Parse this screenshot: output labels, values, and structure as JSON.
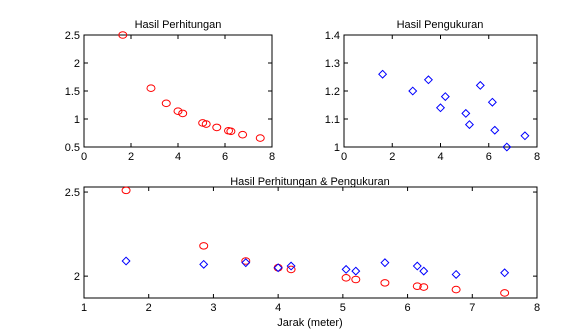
{
  "chart_data": [
    {
      "type": "scatter",
      "title": "Hasil Perhitungan",
      "xlabel": "",
      "ylabel": "",
      "xlim": [
        0,
        8
      ],
      "ylim": [
        0.5,
        2.5
      ],
      "xticks": [
        0,
        2,
        4,
        6,
        8
      ],
      "xtick_labels": [
        "0",
        "2",
        "4",
        "6",
        "8"
      ],
      "yticks": [
        0.5,
        1,
        1.5,
        2,
        2.5
      ],
      "ytick_labels": [
        "0.5",
        "1",
        "1.5",
        "2",
        "2.5"
      ],
      "grid": false,
      "series": [
        {
          "marker": "circle",
          "color": "#ff0000",
          "x": [
            1.65,
            2.85,
            3.5,
            4.0,
            4.2,
            5.05,
            5.2,
            5.65,
            6.15,
            6.25,
            6.75,
            7.5
          ],
          "y": [
            2.5,
            1.55,
            1.28,
            1.14,
            1.1,
            0.93,
            0.91,
            0.85,
            0.79,
            0.78,
            0.72,
            0.66
          ]
        }
      ]
    },
    {
      "type": "scatter",
      "title": "Hasil Pengukuran",
      "xlabel": "",
      "ylabel": "",
      "xlim": [
        0,
        8
      ],
      "ylim": [
        1,
        1.4
      ],
      "xticks": [
        0,
        2,
        4,
        6,
        8
      ],
      "xtick_labels": [
        "0",
        "2",
        "4",
        "6",
        "8"
      ],
      "yticks": [
        1,
        1.1,
        1.2,
        1.3,
        1.4
      ],
      "ytick_labels": [
        "1",
        "1.1",
        "1.2",
        "1.3",
        "1.4"
      ],
      "grid": false,
      "series": [
        {
          "marker": "diamond",
          "color": "#0000ff",
          "x": [
            1.6,
            2.85,
            3.5,
            4.0,
            4.2,
            5.05,
            5.2,
            5.65,
            6.15,
            6.25,
            6.75,
            7.5
          ],
          "y": [
            1.26,
            1.2,
            1.24,
            1.14,
            1.18,
            1.12,
            1.08,
            1.22,
            1.16,
            1.06,
            1.0,
            1.04
          ]
        }
      ]
    },
    {
      "type": "scatter",
      "title": "Hasil Perhitungan & Pengukuran",
      "xlabel": "Jarak (meter)",
      "ylabel": "",
      "xlim": [
        1,
        8
      ],
      "ylim": [
        1.87,
        2.53
      ],
      "xticks": [
        1,
        2,
        3,
        4,
        5,
        6,
        7,
        8
      ],
      "xtick_labels": [
        "1",
        "2",
        "3",
        "4",
        "5",
        "6",
        "7",
        "8"
      ],
      "yticks": [
        2,
        2.5
      ],
      "ytick_labels": [
        "2",
        "2.5"
      ],
      "grid": false,
      "series": [
        {
          "marker": "circle",
          "color": "#ff0000",
          "x": [
            1.65,
            2.85,
            3.5,
            4.0,
            4.2,
            5.05,
            5.2,
            5.65,
            6.15,
            6.25,
            6.75,
            7.5
          ],
          "y": [
            2.51,
            2.18,
            2.09,
            2.05,
            2.04,
            1.99,
            1.98,
            1.96,
            1.94,
            1.935,
            1.92,
            1.9
          ]
        },
        {
          "marker": "diamond",
          "color": "#0000ff",
          "x": [
            1.65,
            2.85,
            3.5,
            4.0,
            4.2,
            5.05,
            5.2,
            5.65,
            6.15,
            6.25,
            6.75,
            7.5
          ],
          "y": [
            2.09,
            2.07,
            2.08,
            2.05,
            2.06,
            2.04,
            2.03,
            2.08,
            2.06,
            2.03,
            2.01,
            2.02
          ]
        }
      ]
    }
  ]
}
